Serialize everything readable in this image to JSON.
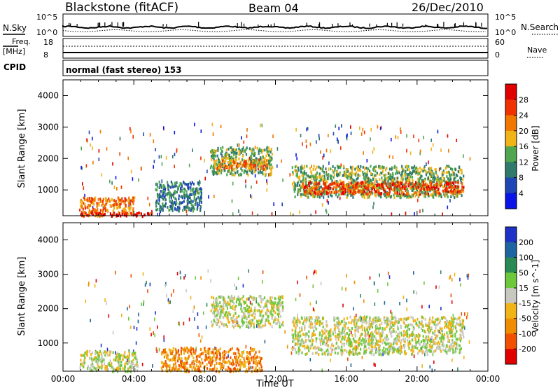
{
  "header": {
    "station": "Blackstone (fitACF)",
    "beam": "Beam 04",
    "date": "26/Dec/2010",
    "cpid_label": "CPID",
    "cpid_text": "normal (fast stereo) 153"
  },
  "strip_labels": {
    "nsky": "N.Sky",
    "nsearch": "N.Search",
    "freq": "Freq.",
    "freq_unit": "[MHz]",
    "nave": "Nave",
    "noise_top": "10^5",
    "noise_bottom": "10^0",
    "freq_top": "18",
    "freq_bottom": "8",
    "nave_top": "60",
    "nave_bottom": "0"
  },
  "chart_data": [
    {
      "type": "heatmap",
      "name": "power",
      "ylabel": "Slant Range [km]",
      "xlabel": "",
      "xlim": [
        0,
        24
      ],
      "ylim": [
        180,
        4500
      ],
      "yticks": [
        1000,
        2000,
        3000,
        4000
      ],
      "colorbar": {
        "label": "Power [dB]",
        "ticks": [
          "4",
          "8",
          "12",
          "16",
          "20",
          "24",
          "28"
        ],
        "colors": [
          "#0a14e6",
          "#1e46b4",
          "#2f7a6a",
          "#4fa64f",
          "#f0b418",
          "#f07800",
          "#f03200",
          "#e10000"
        ]
      },
      "regions": [
        {
          "t": [
            0.9,
            4.0
          ],
          "r": [
            200,
            800
          ],
          "level": 5
        },
        {
          "t": [
            1.0,
            5.0
          ],
          "r": [
            200,
            320
          ],
          "level": 7
        },
        {
          "t": [
            5.2,
            7.8
          ],
          "r": [
            350,
            1300
          ],
          "level": 2
        },
        {
          "t": [
            8.3,
            11.8
          ],
          "r": [
            1500,
            2400
          ],
          "level": 3
        },
        {
          "t": [
            8.5,
            11.5
          ],
          "r": [
            1700,
            2000
          ],
          "level": 5
        },
        {
          "t": [
            12.9,
            22.6
          ],
          "r": [
            800,
            1800
          ],
          "level": 3
        },
        {
          "t": [
            13.5,
            22.6
          ],
          "r": [
            900,
            1300
          ],
          "level": 6
        }
      ]
    },
    {
      "type": "heatmap",
      "name": "velocity",
      "ylabel": "Slant Range [km]",
      "xlabel": "Time UT",
      "xlim": [
        0,
        24
      ],
      "ylim": [
        180,
        4500
      ],
      "xticks": [
        "00:00",
        "04:00",
        "08:00",
        "12:00",
        "16:00",
        "20:00",
        "00:00"
      ],
      "yticks": [
        1000,
        2000,
        3000,
        4000
      ],
      "colorbar": {
        "label": "Velocity [m s^-1]",
        "ticks": [
          "200",
          "100",
          "50",
          "15",
          "-15",
          "-50",
          "-100",
          "-200"
        ],
        "colors": [
          "#1e32c8",
          "#1e64a0",
          "#2a8a55",
          "#6ec83c",
          "#c8c8c0",
          "#f0b418",
          "#f08c00",
          "#f05000",
          "#e10000"
        ]
      },
      "regions": [
        {
          "t": [
            0.9,
            4.2
          ],
          "r": [
            200,
            800
          ],
          "level": 4
        },
        {
          "t": [
            5.5,
            11.2
          ],
          "r": [
            200,
            900
          ],
          "level": 6
        },
        {
          "t": [
            8.3,
            12.4
          ],
          "r": [
            1500,
            2400
          ],
          "level": 4
        },
        {
          "t": [
            12.9,
            22.6
          ],
          "r": [
            700,
            1800
          ],
          "level": 4
        }
      ]
    }
  ]
}
